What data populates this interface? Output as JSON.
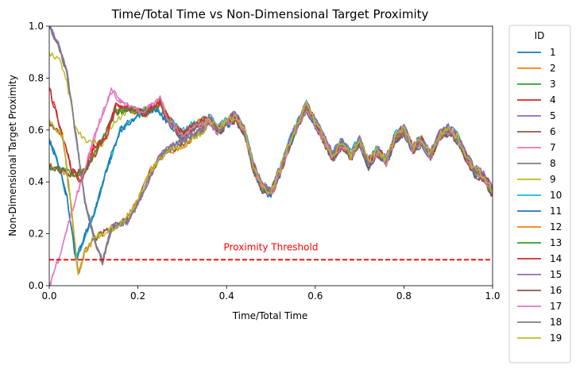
{
  "chart_data": {
    "type": "line",
    "title": "Time/Total Time vs Non-Dimensional Target Proximity",
    "xlabel": "Time/Total Time",
    "ylabel": "Non-Dimensional Target Proximity",
    "xlim": [
      0,
      1
    ],
    "ylim": [
      0,
      1
    ],
    "xticks": [
      "0.0",
      "0.2",
      "0.4",
      "0.6",
      "0.8",
      "1.0"
    ],
    "yticks": [
      "0.0",
      "0.2",
      "0.4",
      "0.6",
      "0.8",
      "1.0"
    ],
    "grid": false,
    "legend": {
      "title": "ID",
      "placement": "outside-right"
    },
    "threshold": {
      "y": 0.1,
      "label": "Proximity Threshold",
      "color": "#ff0000",
      "style": "dashed"
    },
    "groups": [
      {
        "start": [
          [
            0.0,
            0.46
          ],
          [
            0.02,
            0.45
          ],
          [
            0.05,
            0.43
          ],
          [
            0.08,
            0.44
          ],
          [
            0.1,
            0.5
          ],
          [
            0.12,
            0.56
          ],
          [
            0.15,
            0.67
          ],
          [
            0.18,
            0.68
          ],
          [
            0.21,
            0.67
          ],
          [
            0.25,
            0.7
          ]
        ],
        "start_ids": [
          "3",
          "9",
          "12",
          "13",
          "16"
        ]
      },
      {
        "start": [
          [
            0.0,
            0.56
          ],
          [
            0.02,
            0.47
          ],
          [
            0.04,
            0.34
          ],
          [
            0.06,
            0.1
          ],
          [
            0.08,
            0.19
          ],
          [
            0.1,
            0.27
          ],
          [
            0.13,
            0.45
          ],
          [
            0.16,
            0.6
          ],
          [
            0.2,
            0.66
          ],
          [
            0.24,
            0.68
          ]
        ],
        "start_ids": [
          "1",
          "10",
          "11"
        ]
      },
      {
        "start": [
          [
            0.0,
            0.76
          ],
          [
            0.03,
            0.58
          ],
          [
            0.05,
            0.45
          ],
          [
            0.07,
            0.4
          ],
          [
            0.1,
            0.53
          ],
          [
            0.13,
            0.57
          ],
          [
            0.15,
            0.7
          ],
          [
            0.18,
            0.68
          ],
          [
            0.22,
            0.66
          ],
          [
            0.25,
            0.71
          ]
        ],
        "start_ids": [
          "4",
          "14"
        ]
      },
      {
        "start": [
          [
            0.0,
            0.0
          ],
          [
            0.02,
            0.1
          ],
          [
            0.05,
            0.28
          ],
          [
            0.08,
            0.45
          ],
          [
            0.1,
            0.56
          ],
          [
            0.12,
            0.66
          ],
          [
            0.14,
            0.75
          ],
          [
            0.17,
            0.7
          ],
          [
            0.21,
            0.67
          ],
          [
            0.25,
            0.72
          ]
        ],
        "start_ids": [
          "7",
          "17"
        ]
      },
      {
        "start": [
          [
            0.0,
            1.0
          ],
          [
            0.02,
            0.93
          ],
          [
            0.04,
            0.82
          ],
          [
            0.06,
            0.58
          ],
          [
            0.08,
            0.33
          ],
          [
            0.1,
            0.19
          ],
          [
            0.12,
            0.09
          ],
          [
            0.14,
            0.22
          ],
          [
            0.16,
            0.24
          ],
          [
            0.18,
            0.25
          ],
          [
            0.2,
            0.32
          ],
          [
            0.23,
            0.43
          ],
          [
            0.25,
            0.5
          ],
          [
            0.28,
            0.54
          ],
          [
            0.31,
            0.57
          ],
          [
            0.35,
            0.6
          ]
        ],
        "start_ids": [
          "5",
          "8",
          "15",
          "18"
        ]
      },
      {
        "start": [
          [
            0.0,
            0.63
          ],
          [
            0.03,
            0.58
          ],
          [
            0.05,
            0.3
          ],
          [
            0.065,
            0.04
          ],
          [
            0.08,
            0.13
          ],
          [
            0.1,
            0.18
          ],
          [
            0.12,
            0.2
          ],
          [
            0.14,
            0.22
          ],
          [
            0.17,
            0.25
          ],
          [
            0.2,
            0.33
          ],
          [
            0.23,
            0.45
          ],
          [
            0.26,
            0.51
          ],
          [
            0.29,
            0.53
          ],
          [
            0.32,
            0.56
          ],
          [
            0.35,
            0.6
          ]
        ],
        "start_ids": [
          "2",
          "6",
          "19"
        ]
      },
      {
        "start": [
          [
            0.0,
            0.89
          ],
          [
            0.02,
            0.88
          ],
          [
            0.04,
            0.78
          ],
          [
            0.06,
            0.6
          ],
          [
            0.09,
            0.55
          ],
          [
            0.12,
            0.55
          ],
          [
            0.15,
            0.64
          ],
          [
            0.18,
            0.68
          ],
          [
            0.22,
            0.66
          ],
          [
            0.25,
            0.72
          ]
        ],
        "start_ids": [
          "9"
        ]
      }
    ],
    "common_tail": [
      [
        0.27,
        0.64
      ],
      [
        0.3,
        0.58
      ],
      [
        0.33,
        0.62
      ],
      [
        0.36,
        0.64
      ],
      [
        0.38,
        0.6
      ],
      [
        0.4,
        0.63
      ],
      [
        0.42,
        0.65
      ],
      [
        0.44,
        0.6
      ],
      [
        0.46,
        0.46
      ],
      [
        0.48,
        0.38
      ],
      [
        0.5,
        0.36
      ],
      [
        0.52,
        0.44
      ],
      [
        0.54,
        0.54
      ],
      [
        0.56,
        0.62
      ],
      [
        0.58,
        0.69
      ],
      [
        0.6,
        0.63
      ],
      [
        0.62,
        0.56
      ],
      [
        0.64,
        0.5
      ],
      [
        0.66,
        0.55
      ],
      [
        0.68,
        0.5
      ],
      [
        0.7,
        0.56
      ],
      [
        0.72,
        0.47
      ],
      [
        0.74,
        0.52
      ],
      [
        0.76,
        0.48
      ],
      [
        0.78,
        0.57
      ],
      [
        0.8,
        0.6
      ],
      [
        0.82,
        0.53
      ],
      [
        0.84,
        0.56
      ],
      [
        0.86,
        0.5
      ],
      [
        0.88,
        0.58
      ],
      [
        0.9,
        0.6
      ],
      [
        0.92,
        0.57
      ],
      [
        0.94,
        0.5
      ],
      [
        0.96,
        0.44
      ],
      [
        0.98,
        0.42
      ],
      [
        1.0,
        0.36
      ]
    ],
    "series": [
      {
        "name": "1",
        "color": "#1f77b4"
      },
      {
        "name": "2",
        "color": "#ff7f0e"
      },
      {
        "name": "3",
        "color": "#2ca02c"
      },
      {
        "name": "4",
        "color": "#d62728"
      },
      {
        "name": "5",
        "color": "#9467bd"
      },
      {
        "name": "6",
        "color": "#8c564b"
      },
      {
        "name": "7",
        "color": "#e377c2"
      },
      {
        "name": "8",
        "color": "#7f7f7f"
      },
      {
        "name": "9",
        "color": "#bcbd22"
      },
      {
        "name": "10",
        "color": "#17becf"
      },
      {
        "name": "11",
        "color": "#1f77b4"
      },
      {
        "name": "12",
        "color": "#ff7f0e"
      },
      {
        "name": "13",
        "color": "#2ca02c"
      },
      {
        "name": "14",
        "color": "#d62728"
      },
      {
        "name": "15",
        "color": "#9467bd"
      },
      {
        "name": "16",
        "color": "#8c564b"
      },
      {
        "name": "17",
        "color": "#e377c2"
      },
      {
        "name": "18",
        "color": "#7f7f7f"
      },
      {
        "name": "19",
        "color": "#bcbd22"
      }
    ]
  }
}
